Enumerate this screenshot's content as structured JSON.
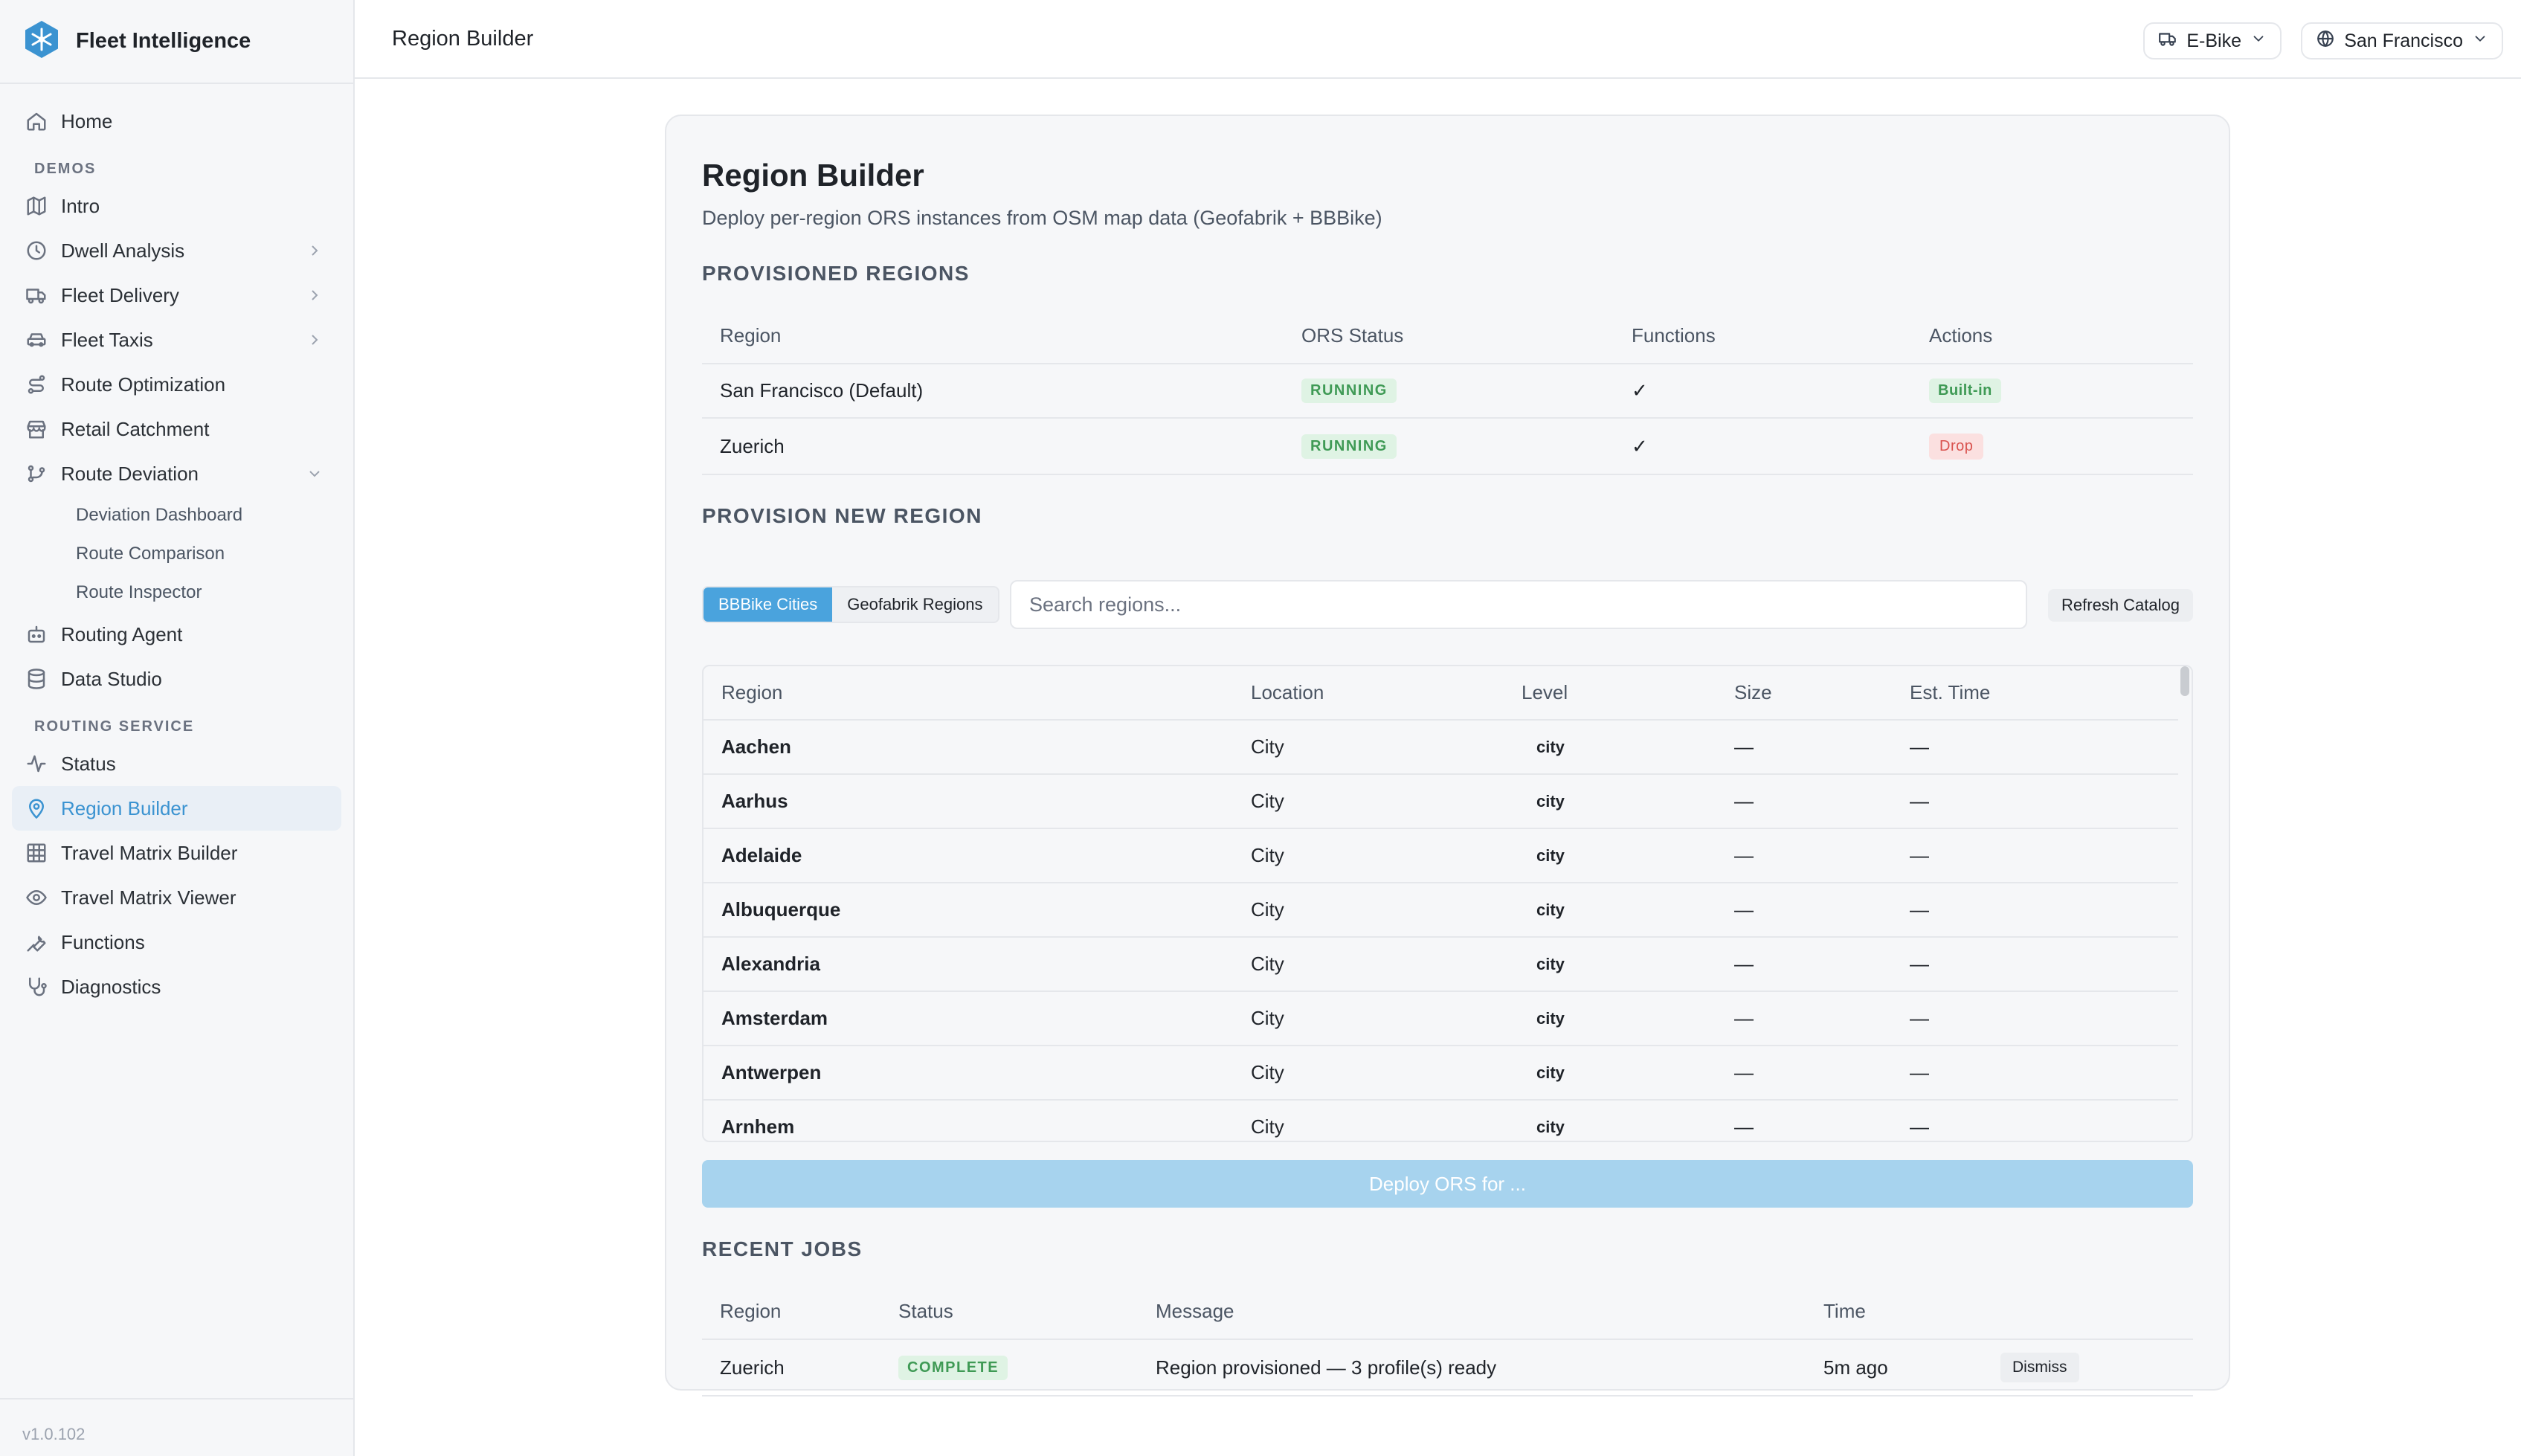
{
  "brand": {
    "name": "Fleet Intelligence"
  },
  "sidebar": {
    "home": "Home",
    "demos_label": "DEMOS",
    "demos": [
      {
        "label": "Intro"
      },
      {
        "label": "Dwell Analysis"
      },
      {
        "label": "Fleet Delivery"
      },
      {
        "label": "Fleet Taxis"
      },
      {
        "label": "Route Optimization"
      },
      {
        "label": "Retail Catchment"
      },
      {
        "label": "Route Deviation"
      }
    ],
    "route_deviation_children": [
      "Deviation Dashboard",
      "Route Comparison",
      "Route Inspector"
    ],
    "more_demos": [
      {
        "label": "Routing Agent"
      },
      {
        "label": "Data Studio"
      }
    ],
    "routing_label": "ROUTING SERVICE",
    "routing": [
      {
        "label": "Status"
      },
      {
        "label": "Region Builder"
      },
      {
        "label": "Travel Matrix Builder"
      },
      {
        "label": "Travel Matrix Viewer"
      },
      {
        "label": "Functions"
      },
      {
        "label": "Diagnostics"
      }
    ],
    "version": "v1.0.102"
  },
  "topbar": {
    "title": "Region Builder",
    "vehicle": "E-Bike",
    "city": "San Francisco"
  },
  "page": {
    "title": "Region Builder",
    "subtitle": "Deploy per-region ORS instances from OSM map data (Geofabrik + BBBike)"
  },
  "provisioned": {
    "title": "PROVISIONED REGIONS",
    "headers": [
      "Region",
      "ORS Status",
      "Functions",
      "Actions"
    ],
    "rows": [
      {
        "region": "San Francisco (Default)",
        "status": "RUNNING",
        "functions": "✓",
        "action": "Built-in"
      },
      {
        "region": "Zuerich",
        "status": "RUNNING",
        "functions": "✓",
        "action": "Drop"
      }
    ]
  },
  "provision_new": {
    "title": "PROVISION NEW REGION",
    "tabs": [
      "BBBike Cities",
      "Geofabrik Regions"
    ],
    "search_placeholder": "Search regions...",
    "refresh_label": "Refresh Catalog",
    "headers": [
      "Region",
      "Location",
      "Level",
      "Size",
      "Est. Time"
    ],
    "rows": [
      {
        "name": "Aachen",
        "location": "City",
        "level": "city",
        "size": "—",
        "time": "—"
      },
      {
        "name": "Aarhus",
        "location": "City",
        "level": "city",
        "size": "—",
        "time": "—"
      },
      {
        "name": "Adelaide",
        "location": "City",
        "level": "city",
        "size": "—",
        "time": "—"
      },
      {
        "name": "Albuquerque",
        "location": "City",
        "level": "city",
        "size": "—",
        "time": "—"
      },
      {
        "name": "Alexandria",
        "location": "City",
        "level": "city",
        "size": "—",
        "time": "—"
      },
      {
        "name": "Amsterdam",
        "location": "City",
        "level": "city",
        "size": "—",
        "time": "—"
      },
      {
        "name": "Antwerpen",
        "location": "City",
        "level": "city",
        "size": "—",
        "time": "—"
      },
      {
        "name": "Arnhem",
        "location": "City",
        "level": "city",
        "size": "—",
        "time": "—"
      }
    ],
    "deploy_label": "Deploy ORS for ..."
  },
  "jobs": {
    "title": "RECENT JOBS",
    "headers": [
      "Region",
      "Status",
      "Message",
      "Time"
    ],
    "rows": [
      {
        "region": "Zuerich",
        "status": "COMPLETE",
        "message": "Region provisioned — 3 profile(s) ready",
        "time": "5m ago",
        "dismiss": "Dismiss"
      }
    ]
  },
  "colors": {
    "accent": "#4aa3dd",
    "success_bg": "#dff3e4",
    "success_text": "#3f9a55",
    "danger_bg": "#fbe0e0",
    "danger_text": "#d9534f"
  }
}
